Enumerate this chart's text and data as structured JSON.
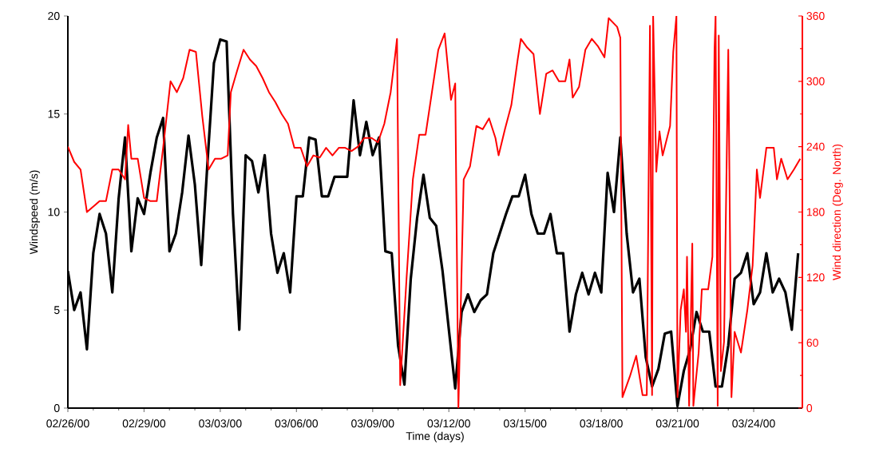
{
  "chart_data": {
    "type": "line",
    "xlabel": "Time (days)",
    "ylabel": "Windspeed (m/s)",
    "y2label": "Wind direction (Deg. North)",
    "xlim": [
      "2000-02-26",
      "2000-03-25T22:00"
    ],
    "xticks": [
      {
        "value": "2000-02-26",
        "label": "02/26/00"
      },
      {
        "value": "2000-02-29",
        "label": "02/29/00"
      },
      {
        "value": "2000-03-03",
        "label": "03/03/00"
      },
      {
        "value": "2000-03-06",
        "label": "03/06/00"
      },
      {
        "value": "2000-03-09",
        "label": "03/09/00"
      },
      {
        "value": "2000-03-12",
        "label": "03/12/00"
      },
      {
        "value": "2000-03-15",
        "label": "03/15/00"
      },
      {
        "value": "2000-03-18",
        "label": "03/18/00"
      },
      {
        "value": "2000-03-21",
        "label": "03/21/00"
      },
      {
        "value": "2000-03-24",
        "label": "03/24/00"
      }
    ],
    "ylim": [
      0,
      20
    ],
    "yticks": [
      0,
      5,
      10,
      15,
      20
    ],
    "y2lim": [
      0,
      360
    ],
    "y2ticks": [
      0,
      60,
      120,
      180,
      240,
      300,
      360
    ],
    "marker": "none",
    "line_style": "solid",
    "series": [
      {
        "color": "#000000",
        "axis": "y",
        "x": [
          "2000-02-26T00:00",
          "2000-02-26T06:00",
          "2000-02-26T12:00",
          "2000-02-26T18:00",
          "2000-02-27T00:00",
          "2000-02-27T06:00",
          "2000-02-27T12:00",
          "2000-02-27T18:00",
          "2000-02-28T00:00",
          "2000-02-28T06:00",
          "2000-02-28T12:00",
          "2000-02-28T18:00",
          "2000-02-29T00:00",
          "2000-02-29T06:00",
          "2000-02-29T12:00",
          "2000-02-29T18:00",
          "2000-03-01T00:00",
          "2000-03-01T06:00",
          "2000-03-01T12:00",
          "2000-03-01T18:00",
          "2000-03-02T00:00",
          "2000-03-02T06:00",
          "2000-03-02T12:00",
          "2000-03-02T18:00",
          "2000-03-03T00:00",
          "2000-03-03T06:00",
          "2000-03-03T12:00",
          "2000-03-03T18:00",
          "2000-03-04T00:00",
          "2000-03-04T06:00",
          "2000-03-04T12:00",
          "2000-03-04T18:00",
          "2000-03-05T00:00",
          "2000-03-05T06:00",
          "2000-03-05T12:00",
          "2000-03-05T18:00",
          "2000-03-06T00:00",
          "2000-03-06T06:00",
          "2000-03-06T12:00",
          "2000-03-06T18:00",
          "2000-03-07T00:00",
          "2000-03-07T06:00",
          "2000-03-07T12:00",
          "2000-03-07T18:00",
          "2000-03-08T00:00",
          "2000-03-08T06:00",
          "2000-03-08T12:00",
          "2000-03-08T18:00",
          "2000-03-09T00:00",
          "2000-03-09T06:00",
          "2000-03-09T12:00",
          "2000-03-09T18:00",
          "2000-03-10T00:00",
          "2000-03-10T06:00",
          "2000-03-10T12:00",
          "2000-03-10T18:00",
          "2000-03-11T00:00",
          "2000-03-11T06:00",
          "2000-03-11T12:00",
          "2000-03-11T18:00",
          "2000-03-12T00:00",
          "2000-03-12T06:00",
          "2000-03-12T12:00",
          "2000-03-12T18:00",
          "2000-03-13T00:00",
          "2000-03-13T06:00",
          "2000-03-13T12:00",
          "2000-03-13T18:00",
          "2000-03-14T00:00",
          "2000-03-14T06:00",
          "2000-03-14T12:00",
          "2000-03-14T18:00",
          "2000-03-15T00:00",
          "2000-03-15T06:00",
          "2000-03-15T12:00",
          "2000-03-15T18:00",
          "2000-03-16T00:00",
          "2000-03-16T06:00",
          "2000-03-16T12:00",
          "2000-03-16T18:00",
          "2000-03-17T00:00",
          "2000-03-17T06:00",
          "2000-03-17T12:00",
          "2000-03-17T18:00",
          "2000-03-18T00:00",
          "2000-03-18T06:00",
          "2000-03-18T12:00",
          "2000-03-18T18:00",
          "2000-03-19T00:00",
          "2000-03-19T06:00",
          "2000-03-19T12:00",
          "2000-03-19T18:00",
          "2000-03-20T00:00",
          "2000-03-20T06:00",
          "2000-03-20T12:00",
          "2000-03-20T18:00",
          "2000-03-21T00:00",
          "2000-03-21T06:00",
          "2000-03-21T12:00",
          "2000-03-21T18:00",
          "2000-03-22T00:00",
          "2000-03-22T06:00",
          "2000-03-22T12:00",
          "2000-03-22T18:00",
          "2000-03-23T00:00",
          "2000-03-23T06:00",
          "2000-03-23T12:00",
          "2000-03-23T18:00",
          "2000-03-24T00:00",
          "2000-03-24T06:00",
          "2000-03-24T12:00",
          "2000-03-24T18:00",
          "2000-03-25T00:00",
          "2000-03-25T06:00",
          "2000-03-25T12:00",
          "2000-03-25T18:00"
        ],
        "values": [
          7,
          5,
          5.9,
          3,
          7.9,
          9.9,
          8.9,
          5.9,
          10.7,
          13.8,
          8,
          10.7,
          9.9,
          12,
          13.8,
          14.8,
          8,
          8.9,
          11,
          13.9,
          11.4,
          7.3,
          12.6,
          17.6,
          18.8,
          18.7,
          9.9,
          4,
          12.9,
          12.6,
          11,
          12.9,
          8.9,
          6.9,
          7.9,
          5.9,
          10.8,
          10.8,
          13.8,
          13.7,
          10.8,
          10.8,
          11.8,
          11.8,
          11.8,
          15.7,
          12.9,
          14.6,
          12.9,
          13.8,
          8,
          7.9,
          3.2,
          1.2,
          6.6,
          9.7,
          11.9,
          9.7,
          9.3,
          7,
          4,
          1,
          4.9,
          5.8,
          4.9,
          5.5,
          5.8,
          7.9,
          8.9,
          9.9,
          10.8,
          10.8,
          11.9,
          9.9,
          8.9,
          8.9,
          9.9,
          7.9,
          7.9,
          3.9,
          5.8,
          6.9,
          5.8,
          6.9,
          5.9,
          12,
          10,
          13.8,
          8.9,
          5.9,
          6.6,
          2.6,
          1.1,
          2,
          3.8,
          3.9,
          0.1,
          1.9,
          3,
          4.9,
          3.9,
          3.9,
          1.1,
          1.1,
          3.2,
          6.6,
          6.9,
          7.9,
          5.3,
          5.9,
          7.9,
          5.9,
          6.6,
          5.9,
          4,
          7.9
        ]
      },
      {
        "color": "#ff0000",
        "axis": "y2",
        "x": [
          "2000-02-26T00:00",
          "2000-02-26T06:00",
          "2000-02-26T12:00",
          "2000-02-26T18:00",
          "2000-02-27T00:00",
          "2000-02-27T06:00",
          "2000-02-27T12:00",
          "2000-02-27T18:00",
          "2000-02-28T00:00",
          "2000-02-28T06:00",
          "2000-02-28T09:00",
          "2000-02-28T12:00",
          "2000-02-28T18:00",
          "2000-02-29T00:00",
          "2000-02-29T06:00",
          "2000-02-29T12:00",
          "2000-02-29T18:00",
          "2000-03-01T01:00",
          "2000-03-01T07:00",
          "2000-03-01T13:00",
          "2000-03-01T19:00",
          "2000-03-02T01:00",
          "2000-03-02T07:00",
          "2000-03-02T13:00",
          "2000-03-02T19:00",
          "2000-03-03T01:00",
          "2000-03-03T07:00",
          "2000-03-03T10:00",
          "2000-03-03T16:00",
          "2000-03-03T22:00",
          "2000-03-04T04:00",
          "2000-03-04T10:00",
          "2000-03-04T16:00",
          "2000-03-04T22:00",
          "2000-03-05T04:00",
          "2000-03-05T10:00",
          "2000-03-05T16:00",
          "2000-03-05T22:00",
          "2000-03-06T04:00",
          "2000-03-06T10:00",
          "2000-03-06T16:00",
          "2000-03-06T22:00",
          "2000-03-07T04:00",
          "2000-03-07T10:00",
          "2000-03-07T16:00",
          "2000-03-07T22:00",
          "2000-03-08T04:00",
          "2000-03-08T10:00",
          "2000-03-08T16:00",
          "2000-03-08T23:00",
          "2000-03-09T05:00",
          "2000-03-09T11:00",
          "2000-03-09T17:00",
          "2000-03-09T21:00",
          "2000-03-09T23:00",
          "2000-03-10T02:00",
          "2000-03-10T08:00",
          "2000-03-10T14:00",
          "2000-03-10T20:00",
          "2000-03-11T02:00",
          "2000-03-11T08:00",
          "2000-03-11T14:00",
          "2000-03-11T20:00",
          "2000-03-12T02:00",
          "2000-03-12T06:00",
          "2000-03-12T09:00",
          "2000-03-12T14:00",
          "2000-03-12T20:00",
          "2000-03-13T02:00",
          "2000-03-13T08:00",
          "2000-03-13T14:00",
          "2000-03-13T20:00",
          "2000-03-13T23:00",
          "2000-03-14T05:00",
          "2000-03-14T11:00",
          "2000-03-14T17:00",
          "2000-03-14T20:00",
          "2000-03-15T02:00",
          "2000-03-15T08:00",
          "2000-03-15T14:00",
          "2000-03-15T20:00",
          "2000-03-16T02:00",
          "2000-03-16T08:00",
          "2000-03-16T14:00",
          "2000-03-16T18:00",
          "2000-03-16T21:00",
          "2000-03-17T03:00",
          "2000-03-17T09:00",
          "2000-03-17T15:00",
          "2000-03-17T21:00",
          "2000-03-18T03:00",
          "2000-03-18T07:00",
          "2000-03-18T15:00",
          "2000-03-18T18:00",
          "2000-03-18T20:00",
          "2000-03-19T03:00",
          "2000-03-19T09:00",
          "2000-03-19T15:00",
          "2000-03-19T19:00",
          "2000-03-19T22:00",
          "2000-03-20T00:00",
          "2000-03-20T01:00",
          "2000-03-20T04:00",
          "2000-03-20T07:00",
          "2000-03-20T10:00",
          "2000-03-20T17:00",
          "2000-03-20T20:00",
          "2000-03-20T23:00",
          "2000-03-21T00:00",
          "2000-03-21T03:00",
          "2000-03-21T06:00",
          "2000-03-21T08:00",
          "2000-03-21T09:00",
          "2000-03-21T11:00",
          "2000-03-21T14:00",
          "2000-03-21T15:00",
          "2000-03-21T20:00",
          "2000-03-21T23:00",
          "2000-03-22T05:00",
          "2000-03-22T09:00",
          "2000-03-22T11:00",
          "2000-03-22T12:00",
          "2000-03-22T14:00",
          "2000-03-22T15:00",
          "2000-03-22T17:00",
          "2000-03-22T20:00",
          "2000-03-23T00:00",
          "2000-03-23T03:00",
          "2000-03-23T06:00",
          "2000-03-23T12:00",
          "2000-03-23T18:00",
          "2000-03-23T23:00",
          "2000-03-24T03:00",
          "2000-03-24T06:00",
          "2000-03-24T12:00",
          "2000-03-24T19:00",
          "2000-03-24T22:00",
          "2000-03-25T02:00",
          "2000-03-25T08:00",
          "2000-03-25T14:00",
          "2000-03-25T20:00"
        ],
        "values": [
          240,
          226,
          219,
          180,
          185,
          190,
          190,
          219,
          219,
          210,
          260,
          229,
          229,
          193,
          190,
          190,
          239,
          300,
          290,
          303,
          329,
          327,
          268,
          219,
          229,
          229,
          232,
          290,
          310,
          329,
          320,
          314,
          303,
          290,
          281,
          270,
          261,
          239,
          239,
          222,
          232,
          230,
          239,
          232,
          239,
          239,
          236,
          240,
          248,
          248,
          244,
          261,
          290,
          322,
          339,
          21,
          119,
          210,
          251,
          251,
          290,
          329,
          344,
          283,
          298,
          0,
          210,
          222,
          259,
          256,
          266,
          248,
          232,
          256,
          278,
          320,
          339,
          331,
          325,
          270,
          307,
          310,
          300,
          300,
          320,
          285,
          295,
          329,
          339,
          332,
          322,
          358,
          350,
          340,
          10,
          29,
          48,
          12,
          12,
          351,
          12,
          360,
          217,
          254,
          232,
          259,
          327,
          360,
          10,
          90,
          109,
          70,
          139,
          2,
          151,
          2,
          51,
          109,
          109,
          139,
          329,
          360,
          2,
          342,
          34,
          61,
          329,
          10,
          70,
          51,
          90,
          131,
          219,
          193,
          239,
          239,
          210,
          229,
          210,
          219,
          229
        ]
      }
    ]
  }
}
